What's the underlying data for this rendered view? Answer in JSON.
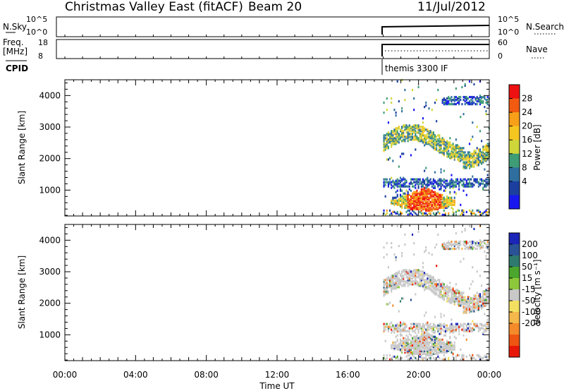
{
  "header": {
    "title": "Christmas Valley East (fitACF)",
    "beam": "Beam 20",
    "date": "11/Jul/2012"
  },
  "strips": {
    "nsky_label": "N.Sky",
    "nsky_ticks": [
      "10^5",
      "10^0"
    ],
    "nsearch_label": "N.Search",
    "nsearch_ticks": [
      "10^5",
      "10^0"
    ],
    "freq_label_1": "Freq.",
    "freq_label_2": "[MHz]",
    "freq_ticks": [
      "18",
      "8"
    ],
    "nave_label": "Nave",
    "nave_ticks": [
      "60",
      "0"
    ],
    "cpid_label": "CPID",
    "cpid_value": "themis 3300 IF"
  },
  "axes": {
    "ylabel": "Slant Range [km]",
    "yticks": [
      "4000",
      "3000",
      "2000",
      "1000"
    ],
    "xlabel": "Time UT",
    "xticks": [
      "00:00",
      "04:00",
      "08:00",
      "12:00",
      "16:00",
      "20:00",
      "00:00"
    ]
  },
  "colorbars": {
    "power": {
      "label": "Power [dB]",
      "ticks": [
        "28",
        "24",
        "20",
        "16",
        "12",
        "8",
        "4"
      ],
      "colors": [
        "#ee1111",
        "#f25a12",
        "#f8a019",
        "#f6c620",
        "#cfd63a",
        "#3e9c77",
        "#2f6fa0",
        "#1c3f9f",
        "#1818ee"
      ]
    },
    "velocity": {
      "label": "Velocity [m s⁻¹]",
      "ticks": [
        "200",
        "100",
        "50",
        "15",
        "-15",
        "-50",
        "-100",
        "-200"
      ],
      "colors": [
        "#1b25b8",
        "#2a5296",
        "#2e7a6e",
        "#4aa62c",
        "#8dc83a",
        "#c8c8c8",
        "#f3e060",
        "#f5b84a",
        "#f48a2a",
        "#ee5512",
        "#e81808"
      ]
    }
  },
  "chart_data": {
    "type": "heatmap",
    "title": "Christmas Valley East (fitACF)",
    "xlabel": "Time UT",
    "ylabel": "Slant Range [km]",
    "xlim": [
      "00:00",
      "24:00"
    ],
    "ylim": [
      180,
      4500
    ],
    "data_start_time": "18:00",
    "panels": [
      {
        "name": "Power [dB]",
        "colorbar_range": [
          0,
          32
        ],
        "features": [
          {
            "time": [
              "18:00",
              "23:59"
            ],
            "range_km": [
              2100,
              2900
            ],
            "power_db": [
              8,
              24
            ]
          },
          {
            "time": [
              "18:00",
              "24:00"
            ],
            "range_km": [
              1000,
              1350
            ],
            "power_db": [
              4,
              16
            ]
          },
          {
            "time": [
              "18:30",
              "22:00"
            ],
            "range_km": [
              250,
              1100
            ],
            "power_db": [
              16,
              30
            ]
          },
          {
            "time": [
              "21:30",
              "24:00"
            ],
            "range_km": [
              3700,
              4000
            ],
            "power_db": [
              4,
              12
            ]
          }
        ]
      },
      {
        "name": "Velocity [m s-1]",
        "colorbar_range": [
          -250,
          250
        ],
        "features": [
          {
            "time": [
              "18:00",
              "23:59"
            ],
            "range_km": [
              2100,
              2900
            ],
            "velocity": [
              -15,
              15
            ]
          },
          {
            "time": [
              "18:30",
              "22:00"
            ],
            "range_km": [
              250,
              1100
            ],
            "velocity": [
              -15,
              15
            ]
          }
        ]
      }
    ]
  }
}
